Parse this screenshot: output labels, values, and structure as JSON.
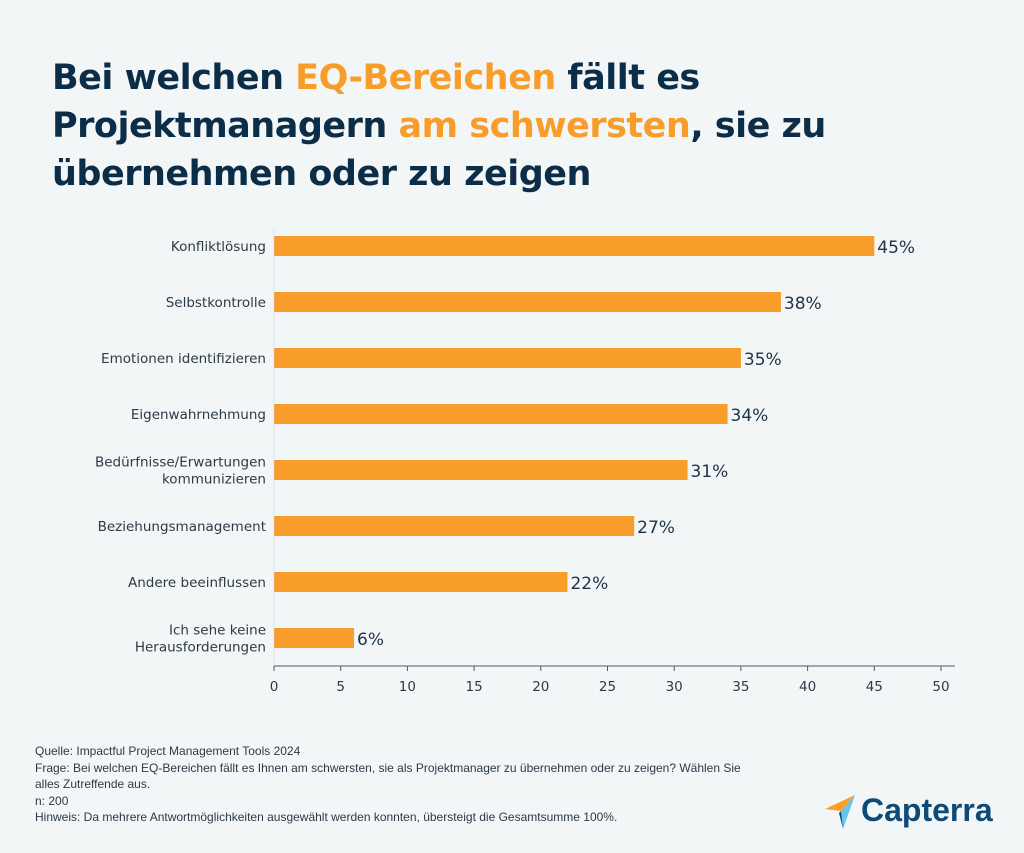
{
  "title": {
    "part1": "Bei welchen ",
    "highlight1": "EQ-Bereichen",
    "part2": " fällt es Projektmanagern ",
    "highlight2": "am schwersten",
    "part3": ", sie zu übernehmen oder zu zeigen"
  },
  "colors": {
    "bar": "#f99d2a",
    "title": "#0b2d48",
    "highlight": "#f99d2a",
    "background": "#f2f6f7"
  },
  "chart_data": {
    "type": "bar",
    "orientation": "horizontal",
    "categories": [
      "Konfliktlösung",
      "Selbstkontrolle",
      "Emotionen identifizieren",
      "Eigenwahrnehmung",
      "Bedürfnisse/Erwartungen kommunizieren",
      "Beziehungsmanagement",
      "Andere beeinflussen",
      "Ich sehe keine Herausforderungen"
    ],
    "category_lines": [
      [
        "Konfliktlösung"
      ],
      [
        "Selbstkontrolle"
      ],
      [
        "Emotionen identifizieren"
      ],
      [
        "Eigenwahrnehmung"
      ],
      [
        "Bedürfnisse/Erwartungen",
        "kommunizieren"
      ],
      [
        "Beziehungsmanagement"
      ],
      [
        "Andere beeinflussen"
      ],
      [
        "Ich sehe keine",
        "Herausforderungen"
      ]
    ],
    "values": [
      45,
      38,
      35,
      34,
      31,
      27,
      22,
      6
    ],
    "data_labels": [
      "45%",
      "38%",
      "35%",
      "34%",
      "31%",
      "27%",
      "22%",
      "6%"
    ],
    "xlim": [
      0,
      50
    ],
    "xticks": [
      "0",
      "5",
      "10",
      "15",
      "20",
      "25",
      "30",
      "35",
      "40",
      "45",
      "50"
    ],
    "grid": false
  },
  "notes": [
    "Quelle: Impactful Project Management Tools 2024",
    "Frage: Bei welchen EQ-Bereichen fällt es Ihnen am schwersten, sie als Projektmanager zu übernehmen oder zu zeigen? Wählen Sie alles Zutreffende aus.",
    "n: 200",
    "Hinweis: Da mehrere Antwortmöglichkeiten ausgewählt werden konnten, übersteigt die Gesamtsumme 100%."
  ],
  "logo": {
    "text": "Capterra",
    "icon": "capterra-arrow-icon"
  }
}
